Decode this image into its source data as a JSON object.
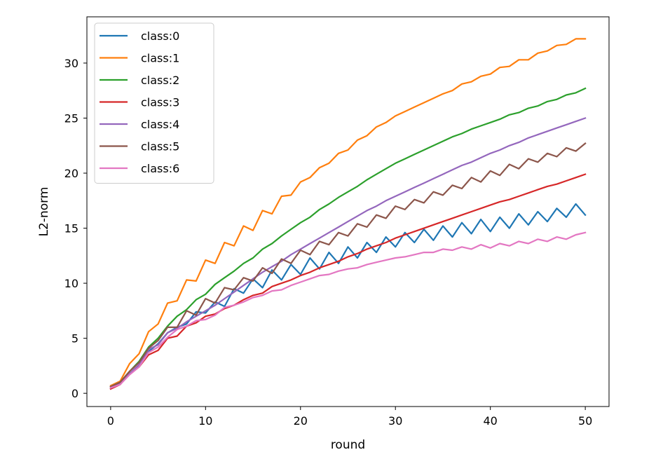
{
  "chart_data": {
    "type": "line",
    "title": "",
    "xlabel": "round",
    "ylabel": "L2-norm",
    "xlim": [
      -2.5,
      52.5
    ],
    "ylim": [
      -1.2,
      34.2
    ],
    "xticks": [
      0,
      10,
      20,
      30,
      40,
      50
    ],
    "yticks": [
      0,
      5,
      10,
      15,
      20,
      25,
      30
    ],
    "grid": false,
    "legend_position": "top-left",
    "x": [
      0,
      1,
      2,
      3,
      4,
      5,
      6,
      7,
      8,
      9,
      10,
      11,
      12,
      13,
      14,
      15,
      16,
      17,
      18,
      19,
      20,
      21,
      22,
      23,
      24,
      25,
      26,
      27,
      28,
      29,
      30,
      31,
      32,
      33,
      34,
      35,
      36,
      37,
      38,
      39,
      40,
      41,
      42,
      43,
      44,
      45,
      46,
      47,
      48,
      49,
      50
    ],
    "series": [
      {
        "name": "class:0",
        "color": "#1f77b4",
        "values": [
          0.6,
          1.0,
          1.8,
          2.5,
          3.8,
          4.5,
          5.5,
          6.0,
          6.3,
          7.4,
          7.3,
          8.3,
          7.9,
          9.5,
          9.1,
          10.4,
          9.6,
          11.2,
          10.3,
          11.7,
          10.8,
          12.3,
          11.3,
          12.8,
          11.8,
          13.3,
          12.3,
          13.7,
          12.8,
          14.2,
          13.3,
          14.6,
          13.7,
          14.9,
          13.9,
          15.2,
          14.2,
          15.5,
          14.5,
          15.8,
          14.7,
          16.0,
          15.0,
          16.3,
          15.3,
          16.5,
          15.6,
          16.8,
          16.0,
          17.2,
          16.2
        ]
      },
      {
        "name": "class:1",
        "color": "#ff7f0e",
        "values": [
          0.7,
          1.1,
          2.7,
          3.6,
          5.6,
          6.3,
          8.2,
          8.4,
          10.3,
          10.2,
          12.1,
          11.8,
          13.7,
          13.4,
          15.2,
          14.8,
          16.6,
          16.3,
          17.9,
          18.0,
          19.2,
          19.6,
          20.5,
          20.9,
          21.8,
          22.1,
          23.0,
          23.4,
          24.2,
          24.6,
          25.2,
          25.6,
          26.0,
          26.4,
          26.8,
          27.2,
          27.5,
          28.1,
          28.3,
          28.8,
          29.0,
          29.6,
          29.7,
          30.3,
          30.3,
          30.9,
          31.1,
          31.6,
          31.7,
          32.2,
          32.2
        ]
      },
      {
        "name": "class:2",
        "color": "#2ca02c",
        "values": [
          0.6,
          1.0,
          2.0,
          2.9,
          4.2,
          5.0,
          6.1,
          7.0,
          7.6,
          8.5,
          9.0,
          9.9,
          10.5,
          11.1,
          11.8,
          12.3,
          13.1,
          13.6,
          14.3,
          14.9,
          15.5,
          16.0,
          16.7,
          17.2,
          17.8,
          18.3,
          18.8,
          19.4,
          19.9,
          20.4,
          20.9,
          21.3,
          21.7,
          22.1,
          22.5,
          22.9,
          23.3,
          23.6,
          24.0,
          24.3,
          24.6,
          24.9,
          25.3,
          25.5,
          25.9,
          26.1,
          26.5,
          26.7,
          27.1,
          27.3,
          27.7
        ]
      },
      {
        "name": "class:3",
        "color": "#d62728",
        "values": [
          0.4,
          0.8,
          1.8,
          2.4,
          3.5,
          3.9,
          5.0,
          5.2,
          6.1,
          6.4,
          7.0,
          7.2,
          7.7,
          8.0,
          8.5,
          8.9,
          9.1,
          9.7,
          10.0,
          10.3,
          10.7,
          11.0,
          11.4,
          11.7,
          12.0,
          12.4,
          12.7,
          13.1,
          13.4,
          13.7,
          14.1,
          14.4,
          14.7,
          15.0,
          15.3,
          15.6,
          15.9,
          16.2,
          16.5,
          16.8,
          17.1,
          17.4,
          17.6,
          17.9,
          18.2,
          18.5,
          18.8,
          19.0,
          19.3,
          19.6,
          19.9
        ]
      },
      {
        "name": "class:4",
        "color": "#9467bd",
        "values": [
          0.5,
          0.9,
          1.8,
          2.6,
          4.0,
          4.4,
          5.5,
          5.9,
          6.5,
          7.0,
          7.5,
          8.0,
          8.6,
          9.2,
          9.8,
          10.4,
          11.0,
          11.5,
          12.0,
          12.6,
          13.1,
          13.6,
          14.1,
          14.6,
          15.1,
          15.6,
          16.1,
          16.6,
          17.0,
          17.5,
          17.9,
          18.3,
          18.7,
          19.1,
          19.5,
          19.9,
          20.3,
          20.7,
          21.0,
          21.4,
          21.8,
          22.1,
          22.5,
          22.8,
          23.2,
          23.5,
          23.8,
          24.1,
          24.4,
          24.7,
          25.0
        ]
      },
      {
        "name": "class:5",
        "color": "#8c564b",
        "values": [
          0.6,
          1.0,
          2.0,
          2.8,
          4.1,
          4.8,
          6.0,
          6.0,
          7.5,
          7.1,
          8.6,
          8.2,
          9.6,
          9.4,
          10.5,
          10.2,
          11.4,
          10.9,
          12.2,
          11.8,
          13.0,
          12.6,
          13.8,
          13.5,
          14.6,
          14.3,
          15.4,
          15.1,
          16.2,
          15.9,
          17.0,
          16.7,
          17.6,
          17.3,
          18.3,
          18.0,
          18.9,
          18.6,
          19.6,
          19.2,
          20.2,
          19.8,
          20.8,
          20.4,
          21.3,
          21.0,
          21.8,
          21.5,
          22.3,
          22.0,
          22.7
        ]
      },
      {
        "name": "class:6",
        "color": "#e377c2",
        "values": [
          0.5,
          0.8,
          1.7,
          2.4,
          3.7,
          4.2,
          5.1,
          5.8,
          6.1,
          6.6,
          6.7,
          7.1,
          7.8,
          8.0,
          8.3,
          8.7,
          8.9,
          9.3,
          9.4,
          9.8,
          10.1,
          10.4,
          10.7,
          10.8,
          11.1,
          11.3,
          11.4,
          11.7,
          11.9,
          12.1,
          12.3,
          12.4,
          12.6,
          12.8,
          12.8,
          13.1,
          13.0,
          13.3,
          13.1,
          13.5,
          13.2,
          13.6,
          13.4,
          13.8,
          13.6,
          14.0,
          13.8,
          14.2,
          14.0,
          14.4,
          14.6
        ]
      }
    ]
  }
}
